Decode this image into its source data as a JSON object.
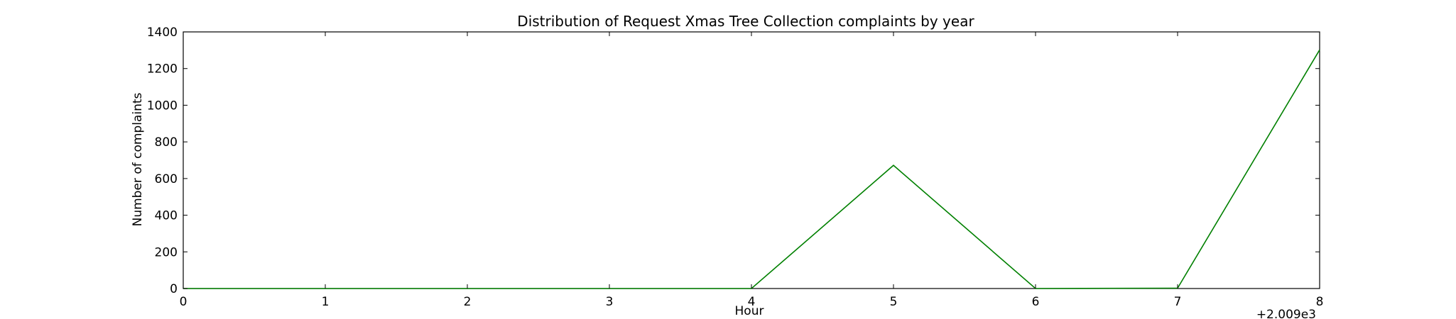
{
  "chart_data": {
    "type": "line",
    "title": "Distribution of  Request Xmas Tree Collection complaints by year",
    "xlabel": "Hour",
    "ylabel": "Number of complaints",
    "x_offset_label": "+2.009e3",
    "x": [
      0,
      1,
      2,
      3,
      4,
      5,
      6,
      7,
      8
    ],
    "x_tick_labels": [
      "0",
      "1",
      "2",
      "3",
      "4",
      "5",
      "6",
      "7",
      "8"
    ],
    "y_tick_labels": [
      "0",
      "200",
      "400",
      "600",
      "800",
      "1000",
      "1200",
      "1400"
    ],
    "xlim": [
      0,
      8
    ],
    "ylim": [
      0,
      1400
    ],
    "grid": false,
    "series": [
      {
        "color": "#008000",
        "values": [
          0,
          0,
          0,
          0,
          0,
          672,
          0,
          2,
          1302
        ]
      }
    ]
  }
}
